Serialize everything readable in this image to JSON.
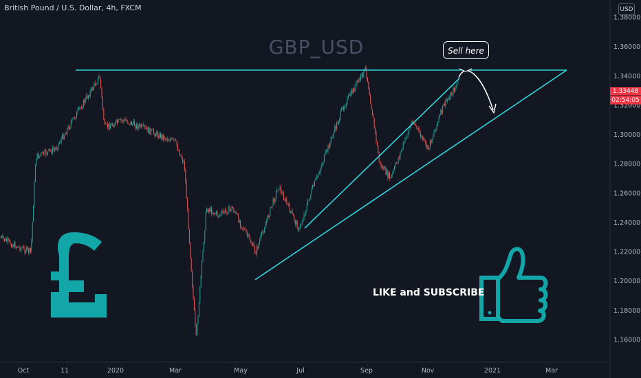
{
  "header": {
    "symbol": "British Pound / U.S. Dollar, 4h, FXCM",
    "currency": "USD"
  },
  "watermark": "GBP_USD",
  "annotations": {
    "sell_text": "Sell here",
    "subscribe_text": "LIKE and SUBSCRIBE"
  },
  "price_tags": {
    "last_price": "1.33448",
    "countdown": "02:54:05"
  },
  "colors": {
    "background": "#131722",
    "up_candle": "#26a69a",
    "down_candle": "#ef5350",
    "trendline": "#32d4dd",
    "icon": "#12a6a8",
    "price_tag": "#f23645"
  },
  "icons": {
    "pound": "pound-sign-icon",
    "thumbs_up": "thumbs-up-icon"
  },
  "chart_data": {
    "type": "candlestick",
    "x_axis_labels": [
      "Oct",
      "11",
      "2020",
      "Mar",
      "May",
      "Jul",
      "Sep",
      "Nov",
      "2021",
      "Mar"
    ],
    "y_axis_labels": [
      "1.38000",
      "1.36000",
      "1.34000",
      "1.32000",
      "1.30000",
      "1.28000",
      "1.26000",
      "1.24000",
      "1.22000",
      "1.20000",
      "1.18000",
      "1.16000"
    ],
    "ylim": [
      1.148,
      1.392
    ],
    "grid": false,
    "close_path": [
      [
        "Sep 2019",
        1.23
      ],
      [
        "Oct 2019",
        1.225
      ],
      [
        "Oct 2019",
        1.22
      ],
      [
        "Oct 2019",
        1.285
      ],
      [
        "Nov 2019",
        1.29
      ],
      [
        "Dec 2019",
        1.34
      ],
      [
        "Dec 2019",
        1.305
      ],
      [
        "Jan 2020",
        1.31
      ],
      [
        "Feb 2020",
        1.3
      ],
      [
        "Feb 2020",
        1.295
      ],
      [
        "Mar 2020",
        1.28
      ],
      [
        "Mar 2020",
        1.16
      ],
      [
        "Mar 2020",
        1.25
      ],
      [
        "Apr 2020",
        1.245
      ],
      [
        "Apr 2020",
        1.25
      ],
      [
        "May 2020",
        1.22
      ],
      [
        "Jun 2020",
        1.265
      ],
      [
        "Jun 2020",
        1.235
      ],
      [
        "Jul 2020",
        1.26
      ],
      [
        "Aug 2020",
        1.32
      ],
      [
        "Sep 2020",
        1.345
      ],
      [
        "Sep 2020",
        1.28
      ],
      [
        "Sep 2020",
        1.27
      ],
      [
        "Oct 2020",
        1.31
      ],
      [
        "Oct 2020",
        1.29
      ],
      [
        "Nov 2020",
        1.32
      ],
      [
        "Nov 2020",
        1.3345
      ]
    ],
    "trendlines": [
      {
        "name": "resistance",
        "from": [
          "Nov 2019",
          1.35
        ],
        "to": [
          "Mar 2021",
          1.35
        ]
      },
      {
        "name": "support",
        "from": [
          "May 2020",
          1.205
        ],
        "to": [
          "Mar 2021",
          1.35
        ]
      },
      {
        "name": "channel",
        "from": [
          "Jul 2020",
          1.24
        ],
        "to": [
          "Nov 2020",
          1.345
        ]
      }
    ]
  }
}
